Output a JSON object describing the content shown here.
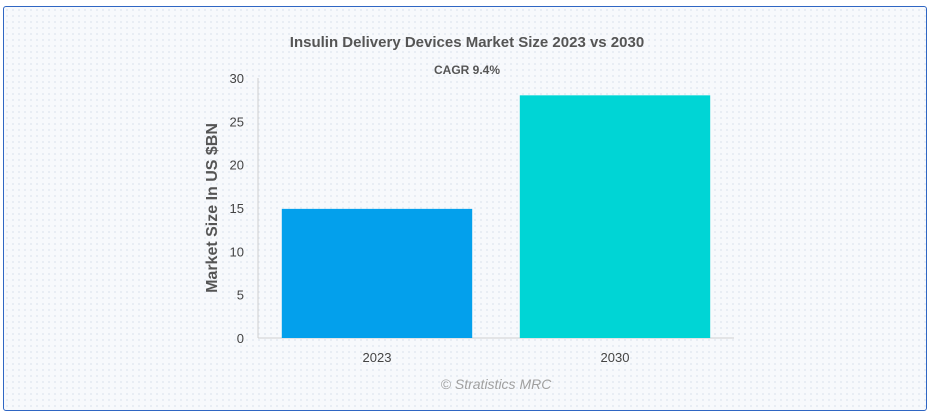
{
  "chart_data": {
    "type": "bar",
    "title": "Insulin Delivery Devices Market Size 2023 vs 2030",
    "subtitle": "CAGR 9.4%",
    "xlabel": "",
    "ylabel": "Market Size In US $BN",
    "categories": [
      "2023",
      "2030"
    ],
    "values": [
      14.9,
      28.0
    ],
    "ylim": [
      0,
      30
    ],
    "yticks": [
      "0",
      "5",
      "10",
      "15",
      "20",
      "25",
      "30"
    ],
    "bar_colors": [
      "#03a0ec",
      "#00d5d5"
    ],
    "grid": false,
    "legend": "none"
  },
  "credit": "© Stratistics MRC"
}
